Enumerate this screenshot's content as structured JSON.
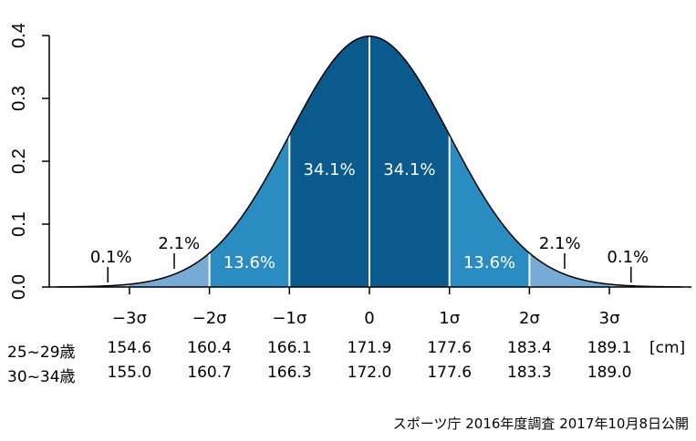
{
  "chart_data": {
    "type": "area",
    "title": "",
    "xlabel": "",
    "ylabel": "",
    "ylim": [
      0,
      0.4
    ],
    "xlim": [
      -3.9,
      3.9
    ],
    "yticks": [
      "0.0",
      "0.1",
      "0.2",
      "0.3",
      "0.4"
    ],
    "yticks_values": [
      0,
      0.1,
      0.2,
      0.3,
      0.4
    ],
    "xticks": [
      "−3σ",
      "−2σ",
      "−1σ",
      "0",
      "1σ",
      "2σ",
      "3σ"
    ],
    "xticks_values": [
      -3,
      -2,
      -1,
      0,
      1,
      2,
      3
    ],
    "distribution": "standard normal",
    "regions": [
      {
        "from": -1,
        "to": 0,
        "label": "34.1%",
        "color": "#0a5a8d"
      },
      {
        "from": 0,
        "to": 1,
        "label": "34.1%",
        "color": "#0a5a8d"
      },
      {
        "from": -2,
        "to": -1,
        "label": "13.6%",
        "color": "#2b8cc2"
      },
      {
        "from": 1,
        "to": 2,
        "label": "13.6%",
        "color": "#2b8cc2"
      },
      {
        "from": -3,
        "to": -2,
        "label": "2.1%",
        "color": "#77abd5"
      },
      {
        "from": 2,
        "to": 3,
        "label": "2.1%",
        "color": "#77abd5"
      },
      {
        "from": -3.9,
        "to": -3,
        "label": "0.1%",
        "color": "#a9c9e6"
      },
      {
        "from": 3,
        "to": 3.9,
        "label": "0.1%",
        "color": "#a9c9e6"
      }
    ]
  },
  "table": {
    "rows": [
      {
        "label": "25~29歳",
        "values": [
          "154.6",
          "160.4",
          "166.1",
          "171.9",
          "177.6",
          "183.4",
          "189.1"
        ],
        "unit": "[cm]"
      },
      {
        "label": "30~34歳",
        "values": [
          "155.0",
          "160.7",
          "166.3",
          "172.0",
          "177.6",
          "183.3",
          "189.0"
        ],
        "unit": ""
      }
    ]
  },
  "source": "スポーツ庁  2016年度調査  2017年10月8日公開"
}
